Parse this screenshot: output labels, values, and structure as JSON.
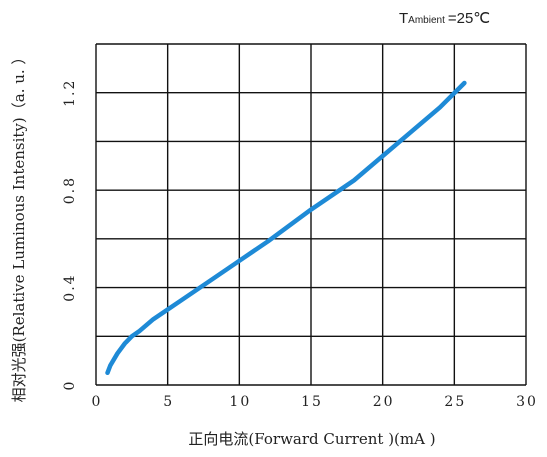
{
  "colors": {
    "curve": "#1e8ad6",
    "grid": "#111111",
    "text": "#222222"
  },
  "chart_data": {
    "type": "line",
    "title": "",
    "condition": {
      "prefix": "T",
      "subscript": "Ambient",
      "suffix": "=25℃"
    },
    "xlabel": "正向电流(Forward  Current )(mA )",
    "ylabel": "相对光强(Relative Luminous Intensity)（a. u. ）",
    "xlim": [
      0,
      30
    ],
    "ylim": [
      0,
      1.4
    ],
    "x_ticks": [
      0,
      5,
      10,
      15,
      20,
      25,
      30
    ],
    "x_tick_labels": [
      "0",
      "5",
      "10",
      "15",
      "20",
      "25",
      "30"
    ],
    "y_ticks": [
      0,
      0.2,
      0.4,
      0.6,
      0.8,
      1.0,
      1.2,
      1.4
    ],
    "y_tick_labels": [
      "0",
      "",
      "0.4",
      "",
      "0.8",
      "",
      "1.2",
      ""
    ],
    "grid": true,
    "series": [
      {
        "x": [
          0.8,
          1.0,
          1.5,
          2.0,
          2.5,
          3.0,
          4.0,
          5.0,
          6.0,
          8.0,
          10.0,
          12.0,
          15.0,
          18.0,
          20.0,
          22.0,
          24.0,
          25.7
        ],
        "values": [
          0.05,
          0.08,
          0.13,
          0.17,
          0.2,
          0.22,
          0.27,
          0.31,
          0.35,
          0.43,
          0.51,
          0.59,
          0.72,
          0.84,
          0.94,
          1.04,
          1.14,
          1.24
        ]
      }
    ]
  }
}
